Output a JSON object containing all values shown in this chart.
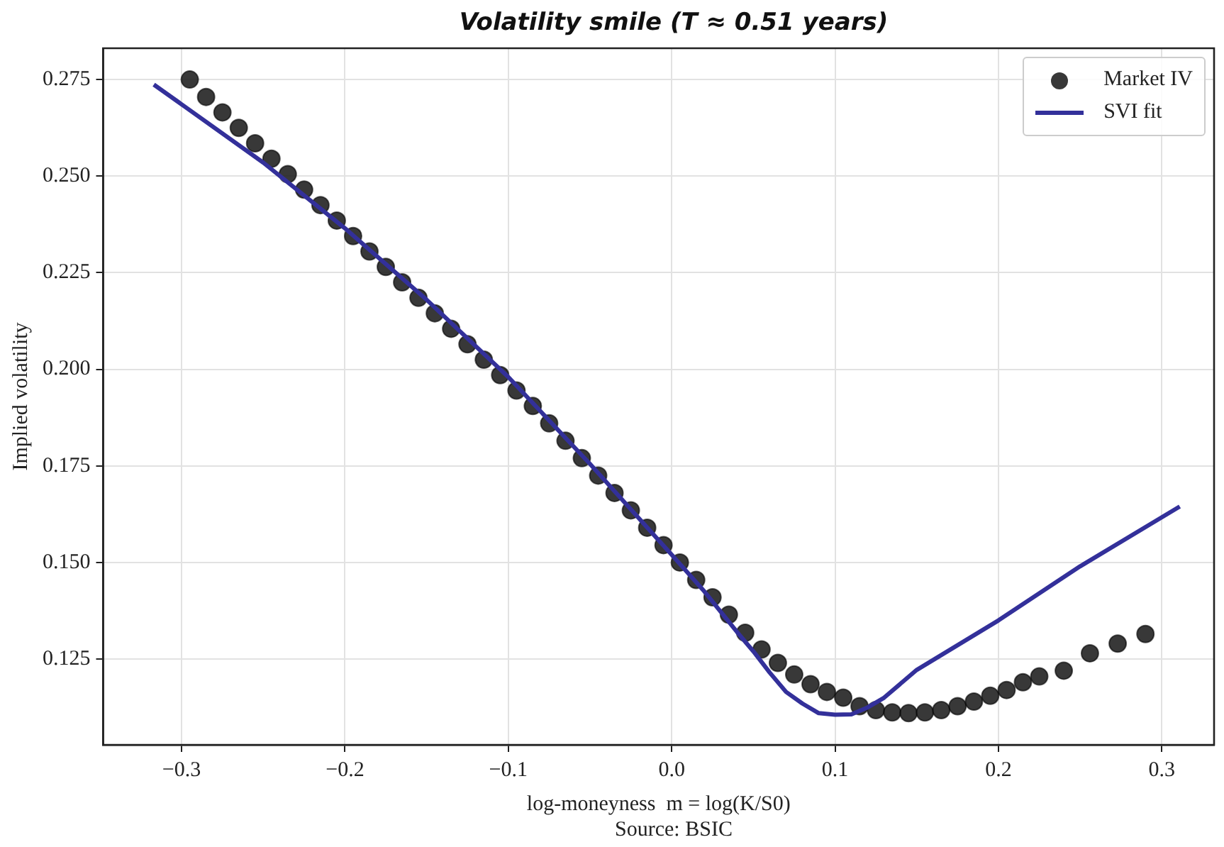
{
  "chart_data": {
    "type": "scatter",
    "title": "Volatility smile (T ≈ 0.51 years)",
    "xlabel": "log-moneyness  m = log(K/S0)",
    "ylabel": "Implied volatility",
    "annotations": [
      "Source: BSIC"
    ],
    "xlim": [
      -0.348,
      0.332
    ],
    "ylim": [
      0.1028,
      0.2831
    ],
    "xticks": [
      {
        "value": -0.3,
        "label": "−0.3"
      },
      {
        "value": -0.2,
        "label": "−0.2"
      },
      {
        "value": -0.1,
        "label": "−0.1"
      },
      {
        "value": 0,
        "label": "0.0"
      },
      {
        "value": 0.1,
        "label": "0.1"
      },
      {
        "value": 0.2,
        "label": "0.2"
      },
      {
        "value": 0.3,
        "label": "0.3"
      }
    ],
    "yticks": [
      {
        "value": 0.125,
        "label": "0.125"
      },
      {
        "value": 0.15,
        "label": "0.150"
      },
      {
        "value": 0.175,
        "label": "0.175"
      },
      {
        "value": 0.2,
        "label": "0.200"
      },
      {
        "value": 0.225,
        "label": "0.225"
      },
      {
        "value": 0.25,
        "label": "0.250"
      },
      {
        "value": 0.275,
        "label": "0.275"
      }
    ],
    "grid": true,
    "legend": "top right",
    "series": [
      {
        "name": "Market IV",
        "type": "scatter",
        "marker": "circle",
        "color": "#222222",
        "x": [
          -0.295,
          -0.285,
          -0.275,
          -0.265,
          -0.255,
          -0.245,
          -0.235,
          -0.225,
          -0.215,
          -0.205,
          -0.195,
          -0.185,
          -0.175,
          -0.165,
          -0.155,
          -0.145,
          -0.135,
          -0.125,
          -0.115,
          -0.105,
          -0.095,
          -0.085,
          -0.075,
          -0.065,
          -0.055,
          -0.045,
          -0.035,
          -0.025,
          -0.015,
          -0.005,
          0.005,
          0.015,
          0.025,
          0.035,
          0.045,
          0.055,
          0.065,
          0.075,
          0.085,
          0.095,
          0.105,
          0.115,
          0.125,
          0.135,
          0.145,
          0.155,
          0.165,
          0.175,
          0.185,
          0.195,
          0.205,
          0.215,
          0.225,
          0.24,
          0.256,
          0.273,
          0.29
        ],
        "values": [
          0.275,
          0.2705,
          0.2665,
          0.2625,
          0.2585,
          0.2545,
          0.2505,
          0.2465,
          0.2425,
          0.2385,
          0.2345,
          0.2305,
          0.2265,
          0.2225,
          0.2185,
          0.2145,
          0.2105,
          0.2065,
          0.2025,
          0.1985,
          0.1945,
          0.1905,
          0.186,
          0.1815,
          0.177,
          0.1725,
          0.168,
          0.1635,
          0.159,
          0.1545,
          0.15,
          0.1455,
          0.141,
          0.1365,
          0.1318,
          0.1275,
          0.124,
          0.121,
          0.1185,
          0.1165,
          0.115,
          0.1128,
          0.1118,
          0.1112,
          0.111,
          0.1112,
          0.1118,
          0.1128,
          0.114,
          0.1155,
          0.117,
          0.119,
          0.1205,
          0.122,
          0.1265,
          0.129,
          0.1315
        ]
      },
      {
        "name": "SVI fit",
        "type": "line",
        "marker": "none",
        "line_style": "solid",
        "color": "#33309a",
        "x": [
          -0.317,
          -0.25,
          -0.2,
          -0.15,
          -0.1,
          -0.05,
          0,
          0.02,
          0.04,
          0.05,
          0.06,
          0.07,
          0.08,
          0.09,
          0.1,
          0.11,
          0.12,
          0.13,
          0.15,
          0.2,
          0.25,
          0.311
        ],
        "values": [
          0.2737,
          0.2535,
          0.2365,
          0.218,
          0.198,
          0.1755,
          0.152,
          0.1425,
          0.132,
          0.127,
          0.1215,
          0.1165,
          0.1135,
          0.111,
          0.1106,
          0.1107,
          0.1125,
          0.115,
          0.1222,
          0.135,
          0.149,
          0.1645
        ]
      }
    ]
  }
}
